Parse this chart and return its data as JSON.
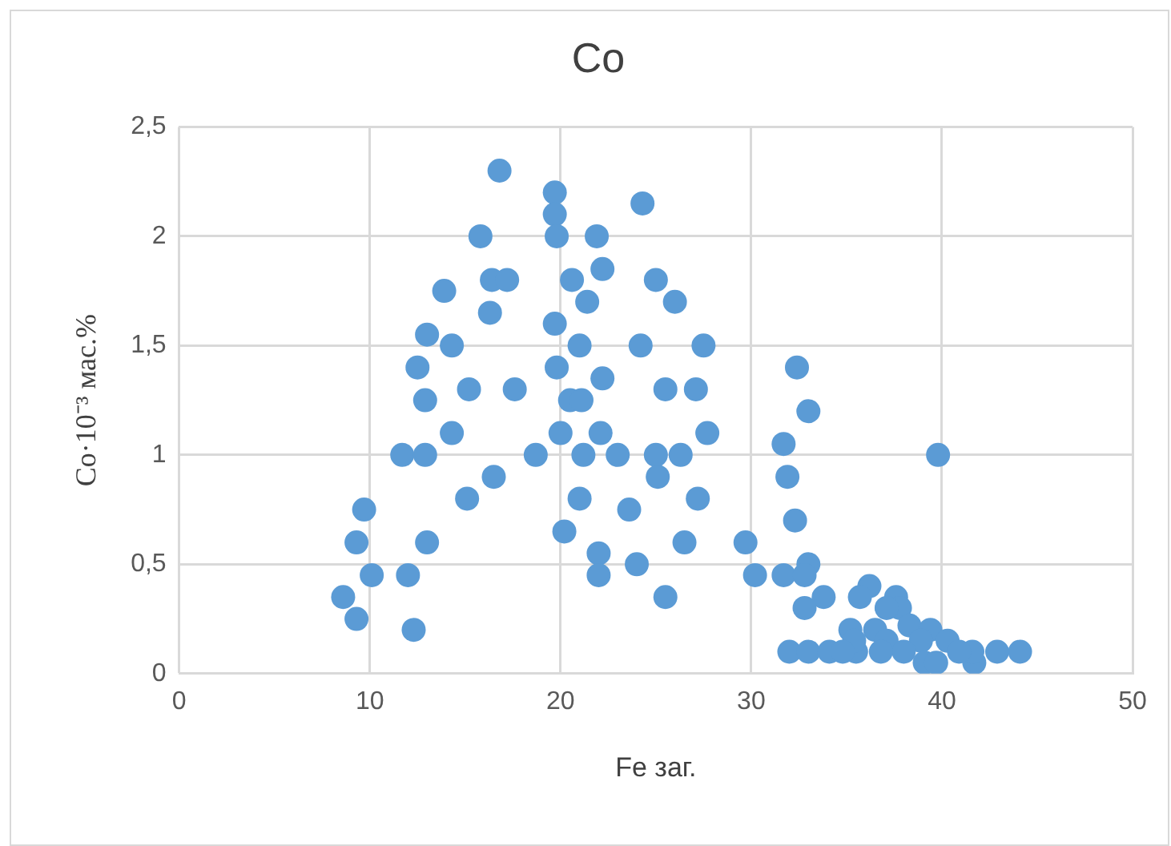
{
  "chart_data": {
    "type": "scatter",
    "title": "Co",
    "xlabel": "Fe заг.",
    "ylabel": "Co·10⁻³ мас.%",
    "xlim": [
      0,
      50
    ],
    "xticks": [
      0,
      10,
      20,
      30,
      40,
      50
    ],
    "ylim": [
      0,
      2.5
    ],
    "yticks": [
      0,
      {
        "value": 0.5,
        "label": "0,5"
      },
      1,
      {
        "value": 1.5,
        "label": "1,5"
      },
      2,
      {
        "value": 2.5,
        "label": "2,5"
      }
    ],
    "grid": true,
    "legend": false,
    "marker": "circle",
    "series": [
      {
        "color": "#5b9bd5",
        "x": [
          16.8,
          19.7,
          19.7,
          19.8,
          15.8,
          21.9,
          24.3,
          13.9,
          16.4,
          17.2,
          20.6,
          22.2,
          25.0,
          26.0,
          16.3,
          21.4,
          19.7,
          13.0,
          14.3,
          21.0,
          24.2,
          27.5,
          12.5,
          19.8,
          22.2,
          12.9,
          15.2,
          17.6,
          20.5,
          21.1,
          25.5,
          27.1,
          14.3,
          20.0,
          22.1,
          27.7,
          11.7,
          12.9,
          18.7,
          21.2,
          23.0,
          25.0,
          26.3,
          25.1,
          16.5,
          15.1,
          21.0,
          23.6,
          27.2,
          20.2,
          26.5,
          22.0,
          22.0,
          24.0,
          25.5,
          9.7,
          9.3,
          13.0,
          10.1,
          12.0,
          8.6,
          9.3,
          12.3,
          33.0,
          31.7,
          31.9,
          39.8,
          32.3,
          29.7,
          30.2,
          31.7,
          33.0,
          32.8,
          33.8,
          32.8,
          32.4,
          32.0,
          33.0,
          34.1,
          35.5,
          42.9,
          44.1,
          41.7,
          41.6,
          36.2,
          35.7,
          37.6,
          37.8,
          37.1,
          38.3,
          35.2,
          36.5,
          39.4,
          40.3,
          38.9,
          35.4,
          37.1,
          39.1,
          39.7,
          38.0,
          36.8,
          40.9,
          34.8
        ],
        "values": [
          2.3,
          2.2,
          2.1,
          2.0,
          2.0,
          2.0,
          2.15,
          1.75,
          1.8,
          1.8,
          1.8,
          1.85,
          1.8,
          1.7,
          1.65,
          1.7,
          1.6,
          1.55,
          1.5,
          1.5,
          1.5,
          1.5,
          1.4,
          1.4,
          1.35,
          1.25,
          1.3,
          1.3,
          1.25,
          1.25,
          1.3,
          1.3,
          1.1,
          1.1,
          1.1,
          1.1,
          1.0,
          1.0,
          1.0,
          1.0,
          1.0,
          1.0,
          1.0,
          0.9,
          0.9,
          0.8,
          0.8,
          0.75,
          0.8,
          0.65,
          0.6,
          0.55,
          0.45,
          0.5,
          0.35,
          0.75,
          0.6,
          0.6,
          0.45,
          0.45,
          0.35,
          0.25,
          0.2,
          1.2,
          1.05,
          0.9,
          1.0,
          0.7,
          0.6,
          0.45,
          0.45,
          0.5,
          0.45,
          0.35,
          0.3,
          1.4,
          0.1,
          0.1,
          0.1,
          0.1,
          0.1,
          0.1,
          0.05,
          0.1,
          0.4,
          0.35,
          0.35,
          0.3,
          0.3,
          0.22,
          0.2,
          0.2,
          0.2,
          0.15,
          0.15,
          0.15,
          0.15,
          0.05,
          0.05,
          0.1,
          0.1,
          0.1,
          0.1
        ]
      }
    ]
  }
}
